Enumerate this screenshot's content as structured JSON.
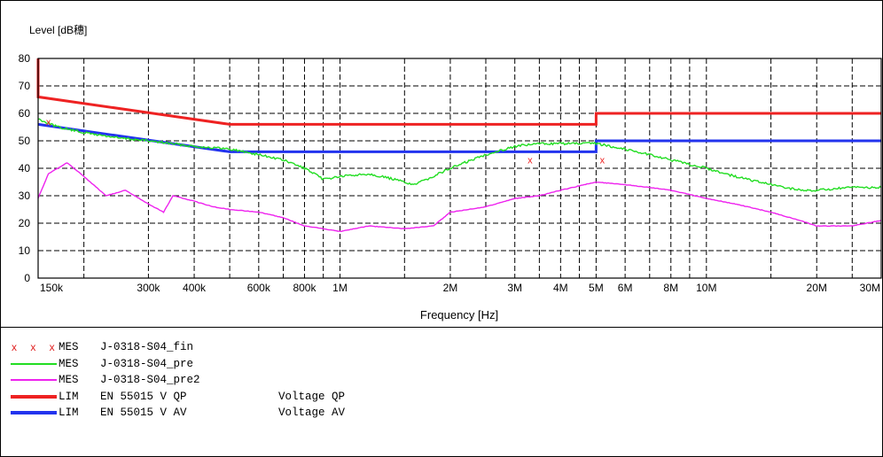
{
  "chart_data": {
    "type": "line",
    "ylabel": "Level [dB穗]",
    "xlabel": "Frequency [Hz]",
    "x_scale": "log",
    "xlim": [
      150000,
      30000000
    ],
    "ylim": [
      0,
      80
    ],
    "grid": true,
    "y_ticks": [
      0,
      10,
      20,
      30,
      40,
      50,
      60,
      70,
      80
    ],
    "x_ticks": [
      {
        "value": 150000,
        "label": "150k"
      },
      {
        "value": 300000,
        "label": "300k"
      },
      {
        "value": 400000,
        "label": "400k"
      },
      {
        "value": 600000,
        "label": "600k"
      },
      {
        "value": 800000,
        "label": "800k"
      },
      {
        "value": 1000000,
        "label": "1M"
      },
      {
        "value": 2000000,
        "label": "2M"
      },
      {
        "value": 3000000,
        "label": "3M"
      },
      {
        "value": 4000000,
        "label": "4M"
      },
      {
        "value": 5000000,
        "label": "5M"
      },
      {
        "value": 6000000,
        "label": "6M"
      },
      {
        "value": 8000000,
        "label": "8M"
      },
      {
        "value": 10000000,
        "label": "10M"
      },
      {
        "value": 20000000,
        "label": "20M"
      },
      {
        "value": 30000000,
        "label": "30M"
      }
    ],
    "minor_grid_x": [
      200000,
      500000,
      700000,
      900000,
      7000000,
      9000000
    ],
    "series": [
      {
        "kind": "LIM",
        "label": "EN 55015 V QP",
        "color": "#ee2222",
        "x": [
          150000,
          150000,
          500000,
          5000000,
          5000000,
          30000000
        ],
        "y": [
          80,
          66,
          56,
          56,
          60,
          60
        ]
      },
      {
        "kind": "LIM",
        "label": "EN 55015 V AV",
        "color": "#2233ee",
        "x": [
          150000,
          500000,
          5000000,
          5000000,
          30000000
        ],
        "y": [
          56,
          46,
          46,
          50,
          50
        ]
      },
      {
        "kind": "MES",
        "label": "J-0318-S04_pre",
        "color": "#22dd22",
        "x": [
          150000,
          170000,
          200000,
          250000,
          300000,
          400000,
          500000,
          600000,
          700000,
          800000,
          900000,
          1000000,
          1200000,
          1400000,
          1600000,
          2000000,
          2500000,
          3000000,
          3500000,
          4000000,
          5000000,
          6000000,
          7000000,
          8000000,
          10000000,
          12000000,
          15000000,
          18000000,
          20000000,
          25000000,
          30000000
        ],
        "y": [
          58,
          55,
          53,
          51,
          50,
          48,
          47,
          45,
          43,
          40,
          36,
          37,
          38,
          36,
          34,
          40,
          45,
          48,
          49,
          49,
          49,
          47,
          45,
          43,
          40,
          37,
          34,
          32,
          32,
          33,
          33
        ]
      },
      {
        "kind": "MES",
        "label": "J-0318-S04_pre2",
        "color": "#ee22ee",
        "x": [
          150000,
          160000,
          180000,
          200000,
          230000,
          260000,
          300000,
          330000,
          350000,
          400000,
          450000,
          500000,
          600000,
          700000,
          800000,
          900000,
          1000000,
          1200000,
          1500000,
          1800000,
          2000000,
          2500000,
          3000000,
          3500000,
          4000000,
          5000000,
          6000000,
          7000000,
          8000000,
          10000000,
          12000000,
          15000000,
          18000000,
          20000000,
          25000000,
          30000000
        ],
        "y": [
          29,
          38,
          42,
          37,
          30,
          32,
          27,
          24,
          30,
          28,
          26,
          25,
          24,
          22,
          19,
          18,
          17,
          19,
          18,
          19,
          24,
          26,
          29,
          30,
          32,
          35,
          34,
          33,
          32,
          29,
          27,
          24,
          21,
          19,
          19,
          21
        ]
      }
    ],
    "final_marks": {
      "kind": "MES",
      "label": "J-0318-S04_fin",
      "color": "#ee2222",
      "x": [
        160000,
        3300000,
        5200000
      ],
      "y": [
        57,
        43,
        43
      ]
    }
  },
  "legend": [
    {
      "kind": "MES",
      "label": "J-0318-S04_fin",
      "desc": "",
      "style": "marks",
      "marks": "x x x",
      "color": "#ee2222"
    },
    {
      "kind": "MES",
      "label": "J-0318-S04_pre",
      "desc": "",
      "style": "line",
      "color": "#22dd22"
    },
    {
      "kind": "MES",
      "label": "J-0318-S04_pre2",
      "desc": "",
      "style": "line",
      "color": "#ee22ee"
    },
    {
      "kind": "LIM",
      "label": "EN 55015 V QP",
      "desc": "Voltage QP",
      "style": "thick",
      "color": "#ee2222"
    },
    {
      "kind": "LIM",
      "label": "EN 55015 V AV",
      "desc": "Voltage AV",
      "style": "thick",
      "color": "#2233ee"
    }
  ]
}
